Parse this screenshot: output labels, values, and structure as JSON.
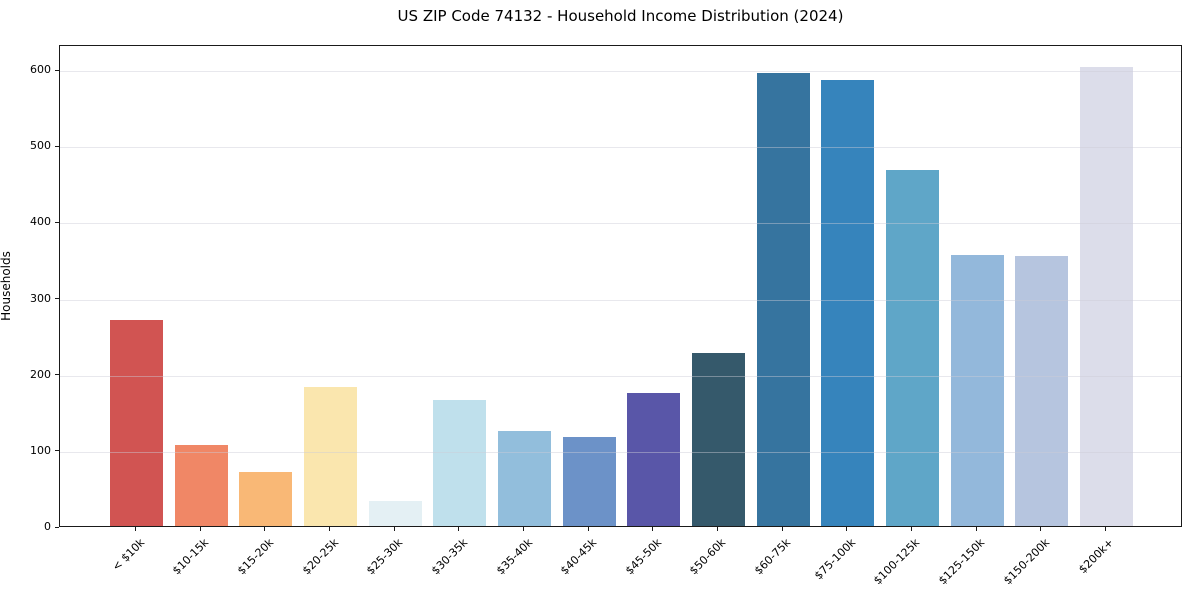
{
  "title": "US ZIP Code 74132 - Household Income Distribution (2024)",
  "chart_data": {
    "type": "bar",
    "title": "US ZIP Code 74132 - Household Income Distribution (2024)",
    "xlabel": "",
    "ylabel": "Households",
    "categories": [
      "< $10k",
      "$10-15k",
      "$15-20k",
      "$20-25k",
      "$25-30k",
      "$30-35k",
      "$35-40k",
      "$40-45k",
      "$45-50k",
      "$50-60k",
      "$60-75k",
      "$75-100k",
      "$100-125k",
      "$125-150k",
      "$150-200k",
      "$200k+"
    ],
    "values": [
      270,
      106,
      71,
      183,
      33,
      165,
      125,
      117,
      175,
      227,
      595,
      586,
      468,
      356,
      355,
      603
    ],
    "bar_colors": [
      "#D15452",
      "#F08766",
      "#F9B876",
      "#FAE6AE",
      "#E4F0F4",
      "#BFE0EC",
      "#92BEDC",
      "#6C92C8",
      "#5956A8",
      "#35596B",
      "#36749F",
      "#3684BC",
      "#5FA6C8",
      "#93B8DB",
      "#B6C5DF",
      "#DCDDEA"
    ],
    "yticks": [
      0,
      100,
      200,
      300,
      400,
      500,
      600
    ],
    "ylim": [
      0,
      633
    ],
    "grid": "horizontal-above-bars",
    "legend": "none",
    "background_color": "#ffffff",
    "gridline_color": "#dddde6",
    "spine_color": "#1a1a1a",
    "x_tick_rotation_deg": 45
  }
}
